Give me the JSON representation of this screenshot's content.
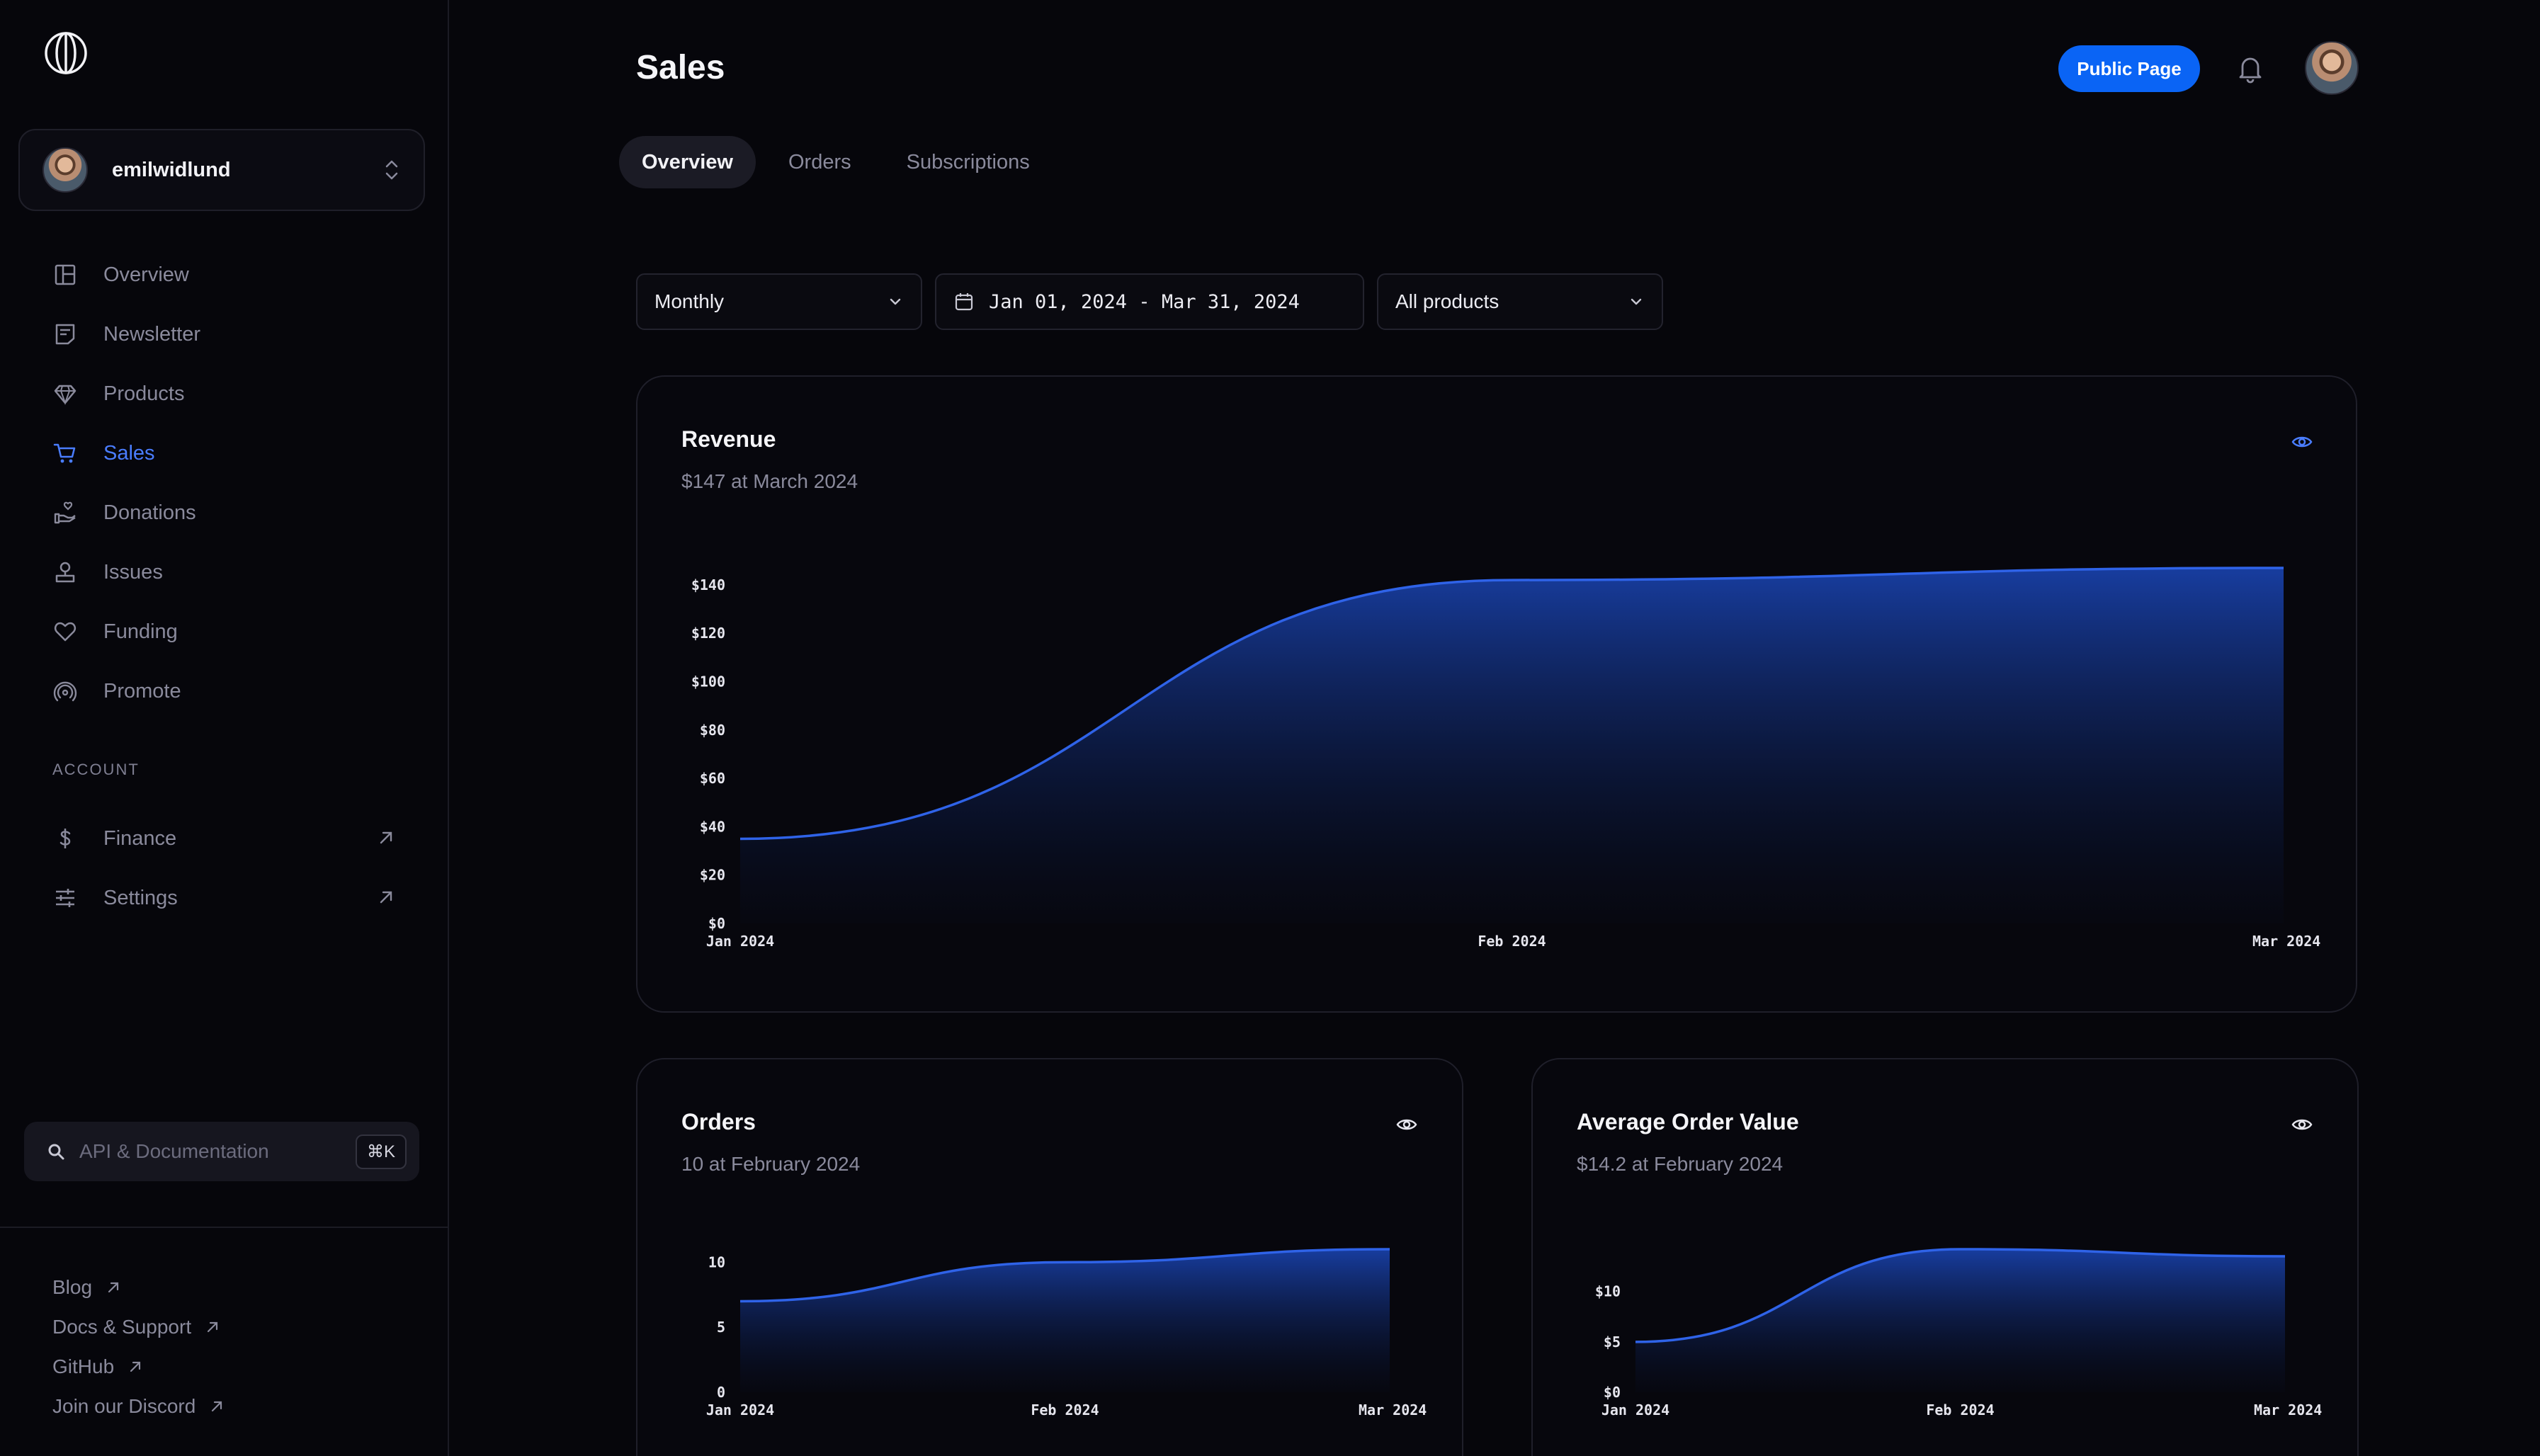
{
  "sidebar": {
    "account": {
      "name": "emilwidlund"
    },
    "nav": [
      {
        "label": "Overview",
        "icon": "layout-icon"
      },
      {
        "label": "Newsletter",
        "icon": "newsletter-icon"
      },
      {
        "label": "Products",
        "icon": "diamond-icon"
      },
      {
        "label": "Sales",
        "icon": "cart-icon",
        "active": true
      },
      {
        "label": "Donations",
        "icon": "donation-icon"
      },
      {
        "label": "Issues",
        "icon": "issues-icon"
      },
      {
        "label": "Funding",
        "icon": "heart-icon"
      },
      {
        "label": "Promote",
        "icon": "broadcast-icon"
      }
    ],
    "account_section_title": "ACCOUNT",
    "account_nav": [
      {
        "label": "Finance",
        "icon": "dollar-icon"
      },
      {
        "label": "Settings",
        "icon": "sliders-icon"
      }
    ],
    "search": {
      "placeholder": "API & Documentation",
      "shortcut": "⌘K"
    },
    "links": [
      "Blog",
      "Docs & Support",
      "GitHub",
      "Join our Discord"
    ]
  },
  "header": {
    "title": "Sales",
    "public_page_label": "Public Page"
  },
  "tabs": [
    "Overview",
    "Orders",
    "Subscriptions"
  ],
  "filters": {
    "interval": "Monthly",
    "date_range": "Jan 01, 2024 - Mar 31, 2024",
    "products": "All products"
  },
  "theme": {
    "accent": "#0a64f5",
    "chart_line": "#2f63e8",
    "background": "#06060b"
  },
  "cards": {
    "revenue": {
      "title": "Revenue",
      "subtitle": "$147 at March 2024"
    },
    "orders": {
      "title": "Orders",
      "subtitle": "10 at February 2024"
    },
    "aov": {
      "title": "Average Order Value",
      "subtitle": "$14.2 at February 2024"
    }
  },
  "chart_data": [
    {
      "id": "revenue",
      "type": "area",
      "x": [
        "Jan 2024",
        "Feb 2024",
        "Mar 2024"
      ],
      "series": [
        {
          "values": [
            35,
            142,
            147
          ]
        }
      ],
      "yticks": [
        "$0",
        "$20",
        "$40",
        "$60",
        "$80",
        "$100",
        "$120",
        "$140"
      ],
      "ylim": [
        0,
        147
      ],
      "grid": false
    },
    {
      "id": "orders",
      "type": "area",
      "x": [
        "Jan 2024",
        "Feb 2024",
        "Mar 2024"
      ],
      "series": [
        {
          "values": [
            7,
            10,
            11
          ]
        }
      ],
      "yticks": [
        "0",
        "5",
        "10"
      ],
      "ylim": [
        0,
        11
      ],
      "grid": false
    },
    {
      "id": "aov",
      "type": "area",
      "x": [
        "Jan 2024",
        "Feb 2024",
        "Mar 2024"
      ],
      "series": [
        {
          "values": [
            5,
            14.2,
            13.5
          ]
        }
      ],
      "yticks": [
        "$0",
        "$5",
        "$10"
      ],
      "ylim": [
        0,
        14.2
      ],
      "grid": false
    }
  ]
}
